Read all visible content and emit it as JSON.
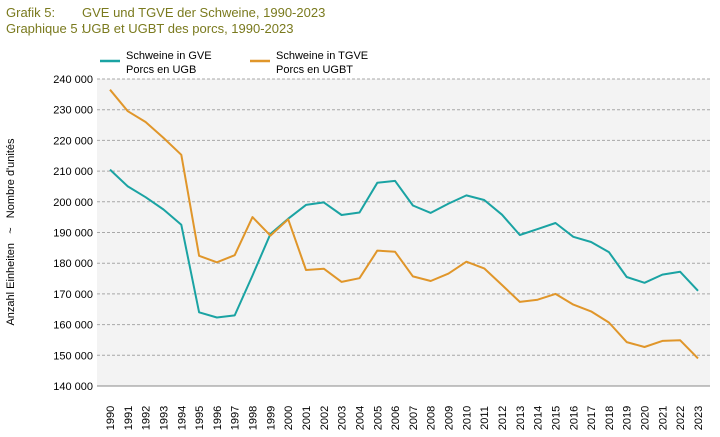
{
  "header": {
    "line1_label": "Grafik 5:",
    "line1_title": "GVE und TGVE der Schweine, 1990-2023",
    "line2_label": "Graphique 5 :",
    "line2_title": "UGB et UGBT des porcs, 1990-2023"
  },
  "colors": {
    "title": "#7a7a1e",
    "gve": "#1aa3a3",
    "tgve": "#e0962a",
    "grid": "#a8a8a8",
    "plot_bg": "#f3f3f3"
  },
  "chart_data": {
    "type": "line",
    "ylabel": "Anzahl Einheiten   ~   Nombre d'unités",
    "ylim": [
      140000,
      240000
    ],
    "y_ticks": [
      140000,
      150000,
      160000,
      170000,
      180000,
      190000,
      200000,
      210000,
      220000,
      230000,
      240000
    ],
    "y_tick_labels": [
      "140 000",
      "150 000",
      "160 000",
      "170 000",
      "180 000",
      "190 000",
      "200 000",
      "210 000",
      "220 000",
      "230 000",
      "240 000"
    ],
    "grid": "horizontal dashed",
    "legend_position": "top-left",
    "categories": [
      "1990",
      "1991",
      "1992",
      "1993",
      "1994",
      "1995",
      "1996",
      "1997",
      "1998",
      "1999",
      "2000",
      "2001",
      "2002",
      "2003",
      "2004",
      "2005",
      "2006",
      "2007",
      "2008",
      "2009",
      "2010",
      "2011",
      "2012",
      "2013",
      "2014",
      "2015",
      "2016",
      "2017",
      "2018",
      "2019",
      "2020",
      "2021",
      "2022",
      "2023"
    ],
    "series": [
      {
        "name_line1": "Schweine in GVE",
        "name_line2": "Porcs en UGB",
        "color": "#1aa3a3",
        "values": [
          210500,
          205000,
          201500,
          197500,
          192500,
          164000,
          162300,
          163000,
          176000,
          189500,
          194500,
          199000,
          199800,
          195700,
          196500,
          206200,
          206800,
          198800,
          196400,
          199400,
          202100,
          200600,
          195800,
          189200,
          191100,
          193100,
          188600,
          186900,
          183600,
          175500,
          173600,
          176300,
          177200,
          171000
        ]
      },
      {
        "name_line1": "Schweine in TGVE",
        "name_line2": "Porcs en UGBT",
        "color": "#e0962a",
        "values": [
          236500,
          229500,
          226000,
          220800,
          215300,
          182400,
          180300,
          182600,
          195000,
          189000,
          194300,
          177800,
          178200,
          173900,
          175100,
          184100,
          183700,
          175700,
          174200,
          176600,
          180500,
          178300,
          172900,
          167400,
          168100,
          170000,
          166500,
          164300,
          160700,
          154300,
          152700,
          154700,
          154900,
          149000
        ]
      }
    ]
  }
}
